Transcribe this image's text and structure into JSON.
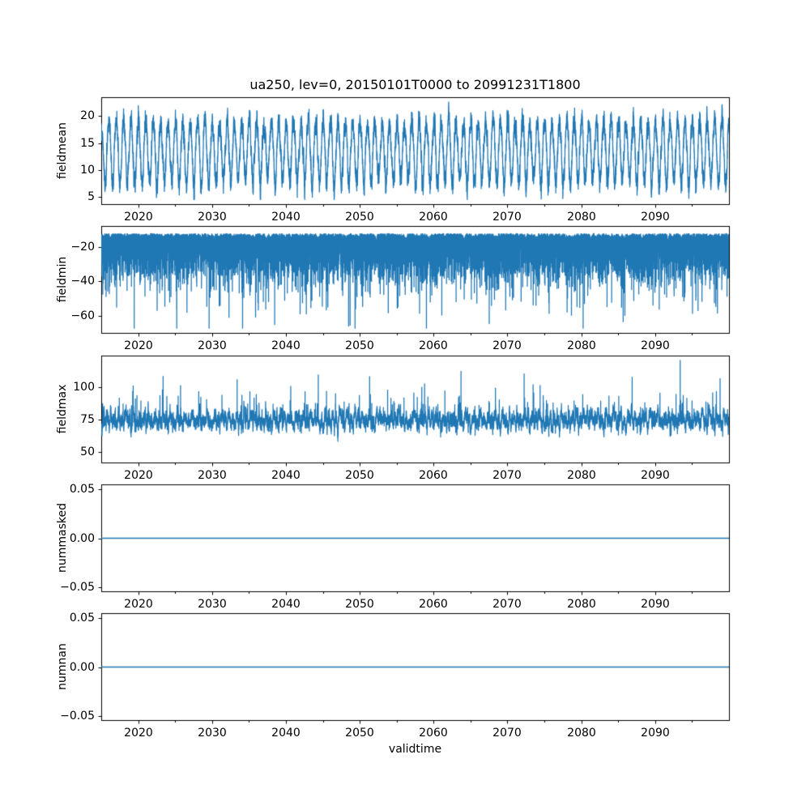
{
  "figure": {
    "title": "ua250, lev=0, 20150101T0000 to 20991231T1800",
    "xlabel": "validtime",
    "background": "#ffffff",
    "frame_color": "#000000",
    "text_color": "#000000",
    "line_color": "#1f77b4",
    "x_start": 2015.0,
    "x_end": 2099.9966,
    "xtick_values": [
      2020,
      2030,
      2040,
      2050,
      2060,
      2070,
      2080,
      2090
    ],
    "xtick_labels": [
      "2020",
      "2030",
      "2040",
      "2050",
      "2060",
      "2070",
      "2080",
      "2090"
    ],
    "xtick_minor_values": [
      2025,
      2035,
      2045,
      2055,
      2065,
      2075,
      2085,
      2095
    ]
  },
  "chart_data": [
    {
      "type": "line",
      "name": "fieldmean",
      "ylabel": "fieldmean",
      "ylim": [
        3.5,
        23.5
      ],
      "ytick_values": [
        5,
        10,
        15,
        20
      ],
      "ytick_labels": [
        "5",
        "10",
        "15",
        "20"
      ],
      "series": {
        "pattern": "annual-cycle-with-noise",
        "mean": 13.9,
        "seasonal_amplitude": 5.1,
        "noise_sd": 1.0,
        "observed_min": 4.8,
        "observed_max": 22.6,
        "deep_trough_years": [
          2036,
          2064
        ],
        "tall_peak_year": 2099
      }
    },
    {
      "type": "line",
      "name": "fieldmin",
      "ylabel": "fieldmin",
      "ylim": [
        -70.5,
        -8.0
      ],
      "ytick_values": [
        -20,
        -40,
        -60
      ],
      "ytick_labels": [
        "−20",
        "−40",
        "−60"
      ],
      "series": {
        "pattern": "noisy-band-with-downward-spikes",
        "band_top": -12.4,
        "band_bottom": -42,
        "spike_floor": -67.3,
        "spike_probability": 0.007,
        "noise_scale": 6.8
      }
    },
    {
      "type": "line",
      "name": "fieldmax",
      "ylabel": "fieldmax",
      "ylim": [
        41.0,
        124.5
      ],
      "ytick_values": [
        50,
        75,
        100
      ],
      "ytick_labels": [
        "50",
        "75",
        "100"
      ],
      "series": {
        "pattern": "noisy-band-annual-dips-upward-spikes",
        "band_center": 80.5,
        "seasonal_amplitude": 7.5,
        "noise_sd": 3.3,
        "annual_dip_depth": 17,
        "dip_floor": 45.2,
        "spike_cap": 120.8,
        "spike_probability": 0.006
      }
    },
    {
      "type": "line",
      "name": "nummasked",
      "ylabel": "nummasked",
      "ylim": [
        -0.055,
        0.055
      ],
      "ytick_values": [
        0.05,
        0.0,
        -0.05
      ],
      "ytick_labels": [
        "0.05",
        "0.00",
        "−0.05"
      ],
      "series": {
        "pattern": "constant",
        "value": 0.0
      }
    },
    {
      "type": "line",
      "name": "numnan",
      "ylabel": "numnan",
      "ylim": [
        -0.055,
        0.055
      ],
      "ytick_values": [
        0.05,
        0.0,
        -0.05
      ],
      "ytick_labels": [
        "0.05",
        "0.00",
        "−0.05"
      ],
      "series": {
        "pattern": "constant",
        "value": 0.0
      }
    }
  ]
}
